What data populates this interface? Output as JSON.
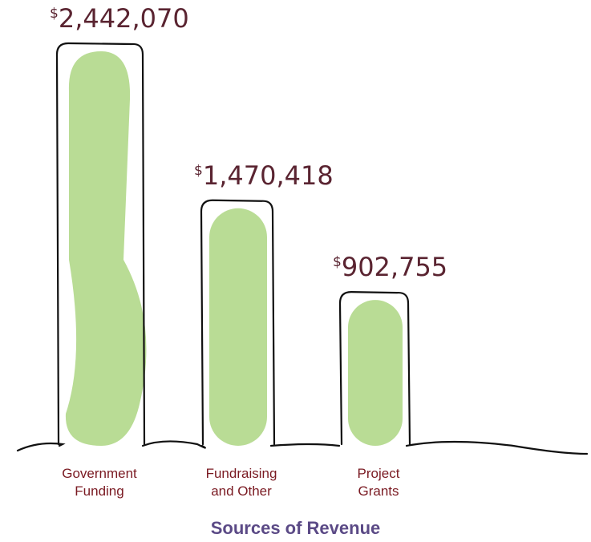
{
  "chart_data": {
    "type": "bar",
    "title": "Sources of Revenue",
    "xlabel": "",
    "ylabel": "",
    "categories": [
      [
        "Government",
        "Funding"
      ],
      [
        "Fundraising",
        "and Other"
      ],
      [
        "Project",
        "Grants"
      ]
    ],
    "values": [
      2442070,
      1470418,
      902755
    ],
    "value_labels": [
      {
        "currency": "$",
        "amount": "2,442,070"
      },
      {
        "currency": "$",
        "amount": "1,470,418"
      },
      {
        "currency": "$",
        "amount": "902,755"
      }
    ],
    "ylim": [
      0,
      2442070
    ],
    "grid": false,
    "legend": "none",
    "colors": {
      "bar_fill": "#b9dc95",
      "outline": "#111111",
      "value_text": "#5a2431",
      "category_text": "#7a1a22",
      "title_text": "#5b4a86"
    }
  }
}
